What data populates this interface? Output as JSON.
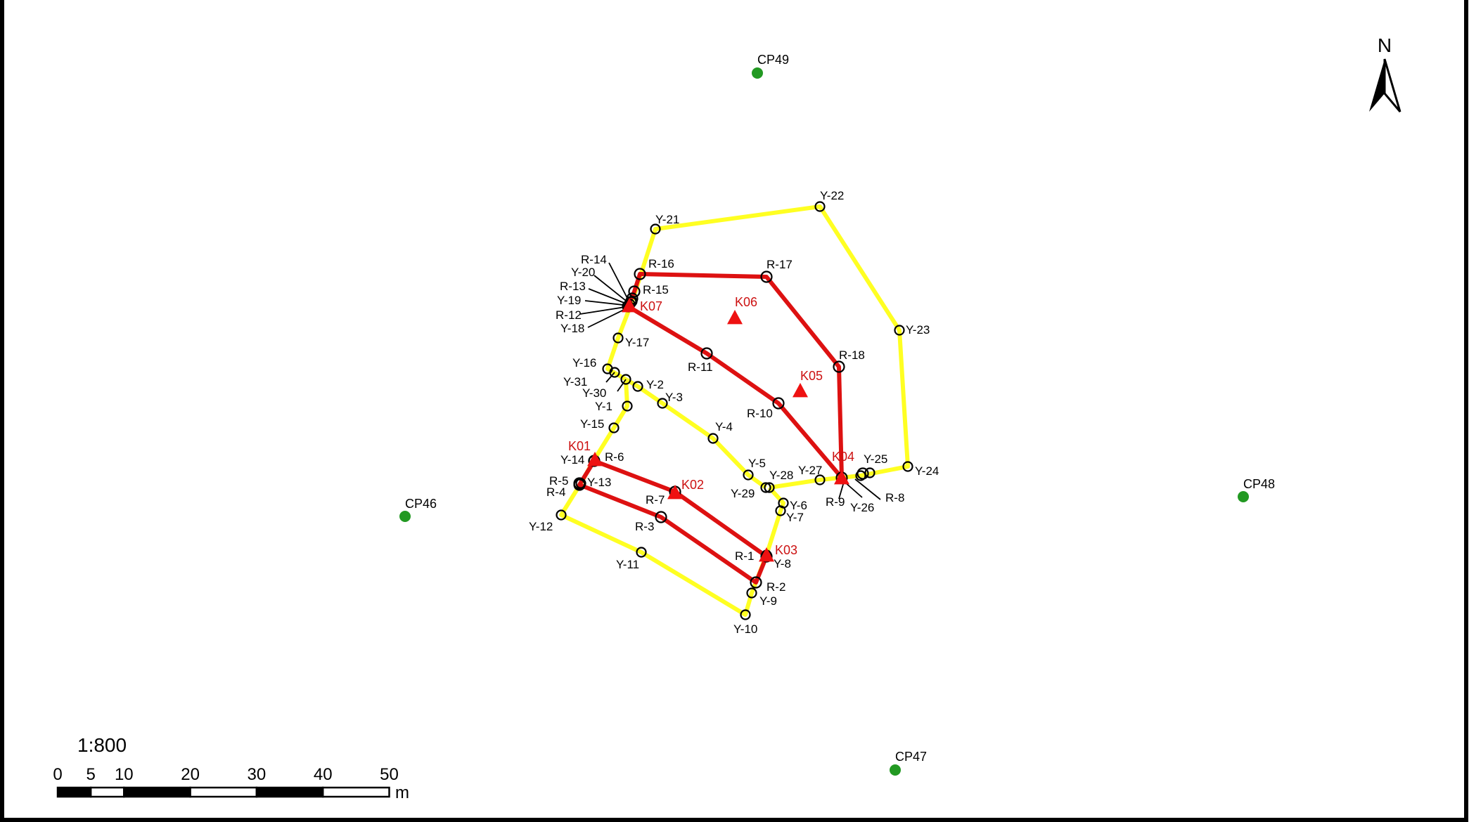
{
  "map": {
    "scale_ratio": "1:800",
    "north_label": "N",
    "scale_bar": {
      "unit": "m",
      "ticks": [
        {
          "value": 0,
          "label": "0"
        },
        {
          "value": 5,
          "label": "5"
        },
        {
          "value": 10,
          "label": "10"
        },
        {
          "value": 20,
          "label": "20"
        },
        {
          "value": 30,
          "label": "30"
        },
        {
          "value": 40,
          "label": "40"
        },
        {
          "value": 50,
          "label": "50"
        }
      ]
    },
    "colors": {
      "yellow_line": "#ffff22",
      "red_line": "#dd1111",
      "control_point": "#229922",
      "k_marker": "#ee1111",
      "k_label": "#cc1111",
      "frame": "#000000"
    },
    "control_points": [
      {
        "id": "CP49",
        "label": "CP49"
      },
      {
        "id": "CP46",
        "label": "CP46"
      },
      {
        "id": "CP48",
        "label": "CP48"
      },
      {
        "id": "CP47",
        "label": "CP47"
      }
    ],
    "k_points": [
      {
        "id": "K01",
        "label": "K01"
      },
      {
        "id": "K02",
        "label": "K02"
      },
      {
        "id": "K03",
        "label": "K03"
      },
      {
        "id": "K04",
        "label": "K04"
      },
      {
        "id": "K05",
        "label": "K05"
      },
      {
        "id": "K06",
        "label": "K06"
      },
      {
        "id": "K07",
        "label": "K07"
      }
    ],
    "y_points": [
      "Y-1",
      "Y-2",
      "Y-3",
      "Y-4",
      "Y-5",
      "Y-6",
      "Y-7",
      "Y-8",
      "Y-9",
      "Y-10",
      "Y-11",
      "Y-12",
      "Y-13",
      "Y-14",
      "Y-15",
      "Y-16",
      "Y-17",
      "Y-18",
      "Y-19",
      "Y-20",
      "Y-21",
      "Y-22",
      "Y-23",
      "Y-24",
      "Y-25",
      "Y-26",
      "Y-27",
      "Y-28",
      "Y-29",
      "Y-30",
      "Y-31"
    ],
    "r_points": [
      "R-1",
      "R-2",
      "R-3",
      "R-4",
      "R-5",
      "R-6",
      "R-7",
      "R-8",
      "R-9",
      "R-10",
      "R-11",
      "R-12",
      "R-13",
      "R-14",
      "R-15",
      "R-16",
      "R-17",
      "R-18"
    ]
  }
}
